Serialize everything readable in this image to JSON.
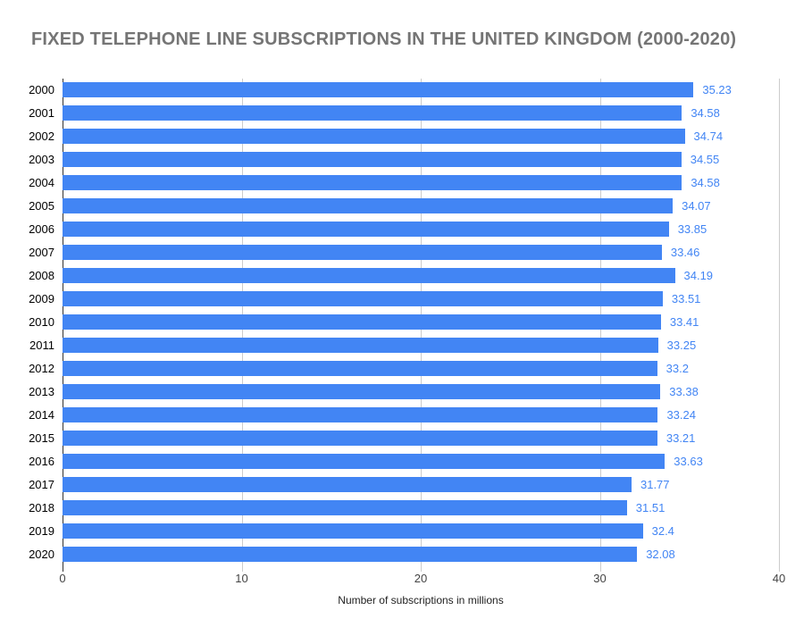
{
  "chart_data": {
    "type": "bar",
    "orientation": "horizontal",
    "title": "FIXED TELEPHONE LINE SUBSCRIPTIONS IN THE UNITED KINGDOM (2000-2020)",
    "categories": [
      "2000",
      "2001",
      "2002",
      "2003",
      "2004",
      "2005",
      "2006",
      "2007",
      "2008",
      "2009",
      "2010",
      "2011",
      "2012",
      "2013",
      "2014",
      "2015",
      "2016",
      "2017",
      "2018",
      "2019",
      "2020"
    ],
    "values": [
      35.23,
      34.58,
      34.74,
      34.55,
      34.58,
      34.07,
      33.85,
      33.46,
      34.19,
      33.51,
      33.41,
      33.25,
      33.2,
      33.38,
      33.24,
      33.21,
      33.63,
      31.77,
      31.51,
      32.4,
      32.08
    ],
    "value_labels": [
      "35.23",
      "34.58",
      "34.74",
      "34.55",
      "34.58",
      "34.07",
      "33.85",
      "33.46",
      "34.19",
      "33.51",
      "33.41",
      "33.25",
      "33.2",
      "33.38",
      "33.24",
      "33.21",
      "33.63",
      "31.77",
      "31.51",
      "32.4",
      "32.08"
    ],
    "xlabel": "Number of subscriptions in millions",
    "xlim": [
      0,
      40
    ],
    "x_ticks": [
      "0",
      "10",
      "20",
      "30",
      "40"
    ],
    "grid": true,
    "legend": "none",
    "colors": {
      "bar": "#4285f4",
      "value_label": "#4285f4",
      "title": "#757575",
      "gridline": "#cccccc",
      "baseline": "#333333",
      "category_label": "#000000",
      "tick_label": "#444444",
      "axis_title": "#222222"
    }
  }
}
